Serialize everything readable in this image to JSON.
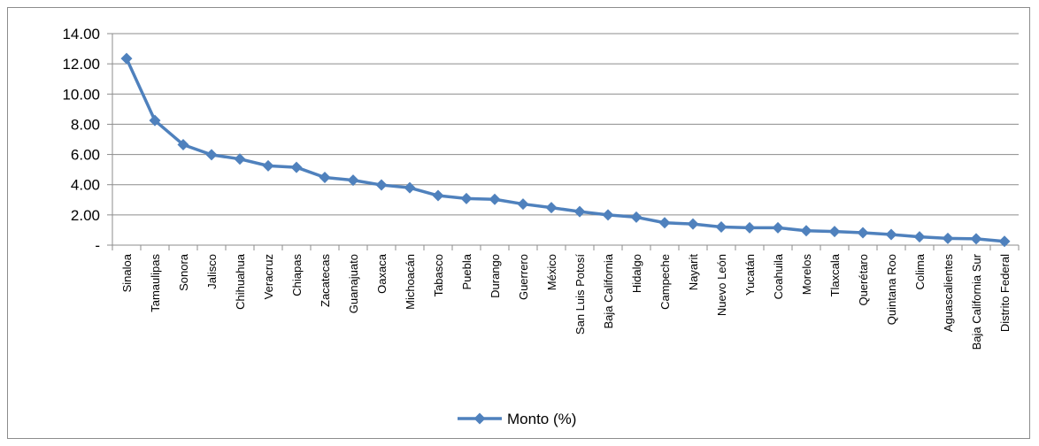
{
  "chart_data": {
    "type": "line",
    "categories": [
      "Sinaloa",
      "Tamaulipas",
      "Sonora",
      "Jalisco",
      "Chihuahua",
      "Veracruz",
      "Chiapas",
      "Zacatecas",
      "Guanajuato",
      "Oaxaca",
      "Michoacán",
      "Tabasco",
      "Puebla",
      "Durango",
      "Guerrero",
      "México",
      "San Luis Potosí",
      "Baja California",
      "Hidalgo",
      "Campeche",
      "Nayarit",
      "Nuevo León",
      "Yucatán",
      "Coahuila",
      "Morelos",
      "Tlaxcala",
      "Querétaro",
      "Quintana Roo",
      "Colima",
      "Aguascalientes",
      "Baja California Sur",
      "Distrito Federal"
    ],
    "series": [
      {
        "name": "Monto (%)",
        "color": "#4f81bd",
        "values": [
          12.35,
          8.25,
          6.65,
          5.98,
          5.7,
          5.25,
          5.15,
          4.48,
          4.3,
          3.98,
          3.8,
          3.28,
          3.08,
          3.03,
          2.72,
          2.48,
          2.22,
          2.0,
          1.85,
          1.48,
          1.4,
          1.2,
          1.15,
          1.15,
          0.95,
          0.9,
          0.82,
          0.7,
          0.55,
          0.45,
          0.42,
          0.25
        ]
      }
    ],
    "ylim": [
      0,
      14
    ],
    "yticks": [
      "-",
      "2.00",
      "4.00",
      "6.00",
      "8.00",
      "10.00",
      "12.00",
      "14.00"
    ],
    "grid": true,
    "legend_position": "bottom"
  }
}
